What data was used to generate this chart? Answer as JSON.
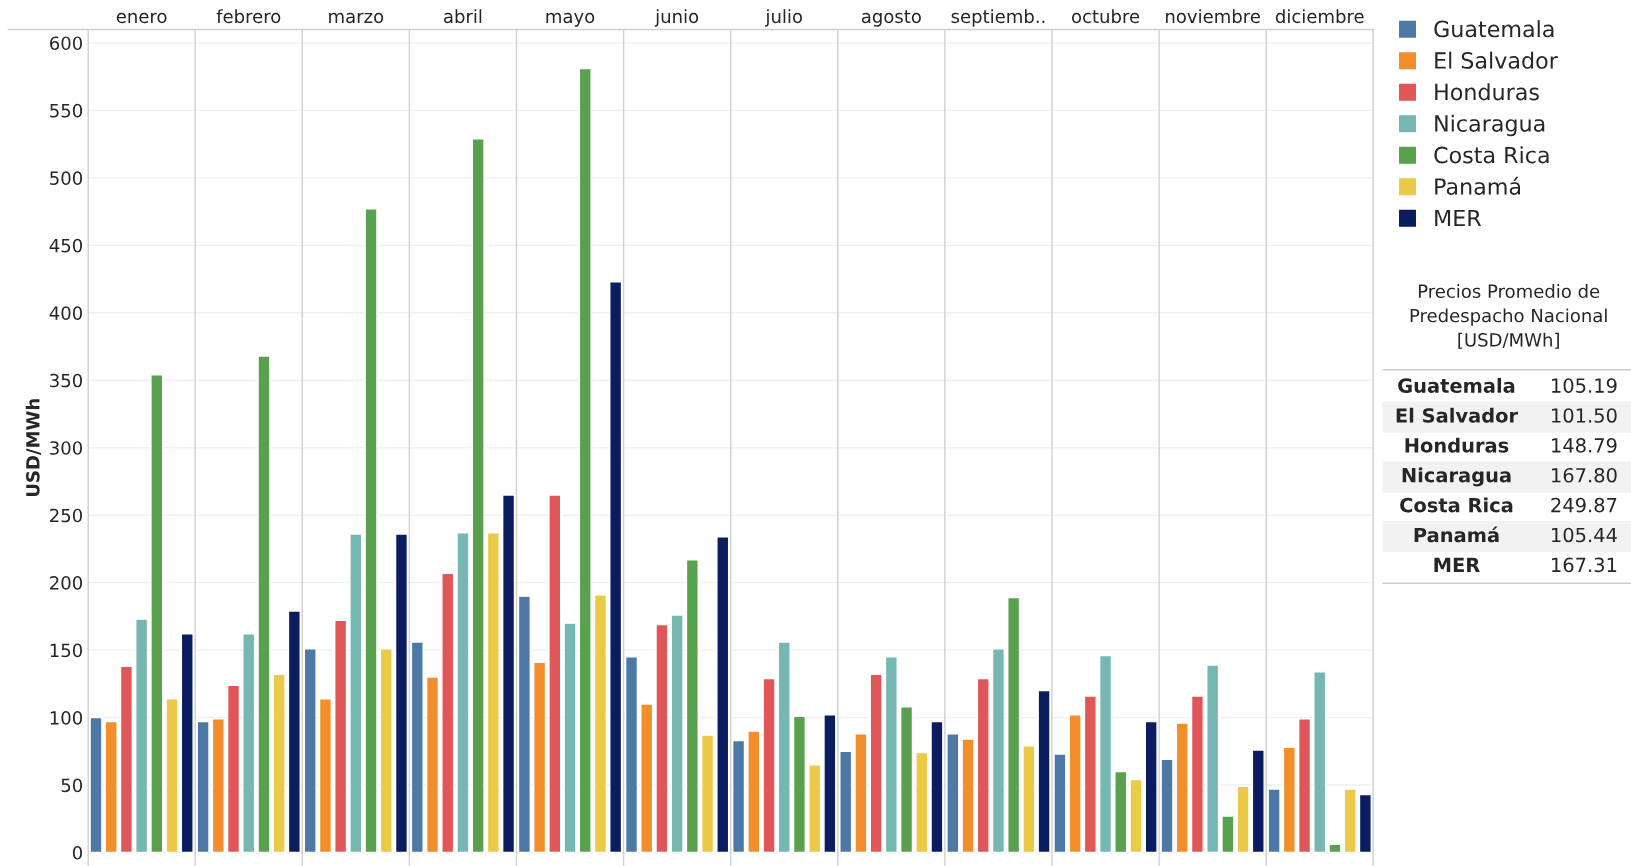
{
  "chart_data": {
    "type": "bar",
    "ylabel": "USD/MWh",
    "categories": [
      "enero",
      "febrero",
      "marzo",
      "abril",
      "mayo",
      "junio",
      "julio",
      "agosto",
      "septiemb..",
      "octubre",
      "noviembre",
      "diciembre"
    ],
    "series": [
      {
        "name": "Guatemala",
        "color": "#4e79a7",
        "values": [
          100,
          97,
          151,
          156,
          190,
          145,
          83,
          75,
          88,
          73,
          69,
          47
        ]
      },
      {
        "name": "El Salvador",
        "color": "#f28e2b",
        "values": [
          97,
          99,
          114,
          130,
          141,
          110,
          90,
          88,
          84,
          102,
          96,
          78
        ]
      },
      {
        "name": "Honduras",
        "color": "#e15759",
        "values": [
          138,
          124,
          172,
          207,
          265,
          169,
          129,
          132,
          129,
          116,
          116,
          99
        ]
      },
      {
        "name": "Nicaragua",
        "color": "#76b7b2",
        "values": [
          173,
          162,
          236,
          237,
          170,
          176,
          156,
          145,
          151,
          146,
          139,
          134
        ]
      },
      {
        "name": "Costa Rica",
        "color": "#59a14f",
        "values": [
          354,
          368,
          477,
          529,
          581,
          217,
          101,
          108,
          189,
          60,
          27,
          6
        ]
      },
      {
        "name": "Panamá",
        "color": "#edc948",
        "values": [
          114,
          132,
          151,
          237,
          191,
          87,
          65,
          74,
          79,
          54,
          49,
          47
        ]
      },
      {
        "name": "MER",
        "color": "#0b1d5f",
        "values": [
          162,
          179,
          236,
          265,
          423,
          234,
          102,
          97,
          120,
          97,
          76,
          43
        ]
      }
    ],
    "ylim": [
      -10,
      610
    ],
    "yticks": [
      0,
      50,
      100,
      150,
      200,
      250,
      300,
      350,
      400,
      450,
      500,
      550,
      600
    ],
    "grid": true,
    "legend": "top right",
    "annotations": [
      "Precios Promedio de\nPredespacho Nacional\n[USD/MWh]",
      "Guatemala 105.19",
      "El Salvador 101.50",
      "Honduras 148.79",
      "Nicaragua 167.80",
      "Costa Rica 249.87",
      "Panamá 105.44",
      "MER 167.31"
    ]
  }
}
